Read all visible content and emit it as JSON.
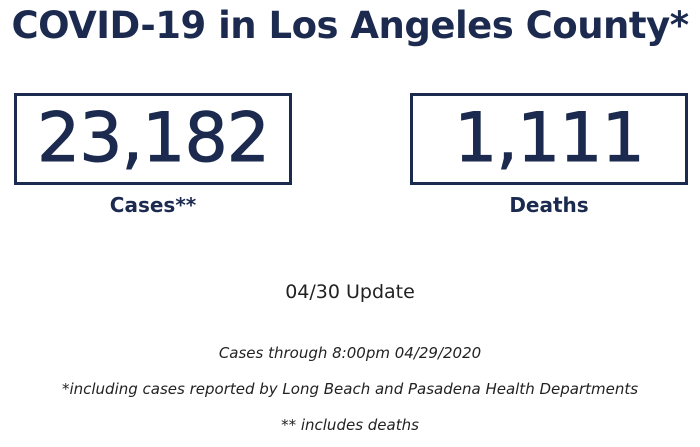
{
  "header": {
    "title": "COVID-19 in Los Angeles County*"
  },
  "stats": {
    "cases": {
      "value": "23,182",
      "label": "Cases**"
    },
    "deaths": {
      "value": "1,111",
      "label": "Deaths"
    }
  },
  "update": "04/30 Update",
  "notes": [
    "Cases through 8:00pm 04/29/2020",
    "*including cases reported by Long Beach and Pasadena Health Departments",
    "** includes deaths"
  ],
  "colors": {
    "primary": "#1b2a4e",
    "text": "#222222",
    "background": "#ffffff"
  }
}
